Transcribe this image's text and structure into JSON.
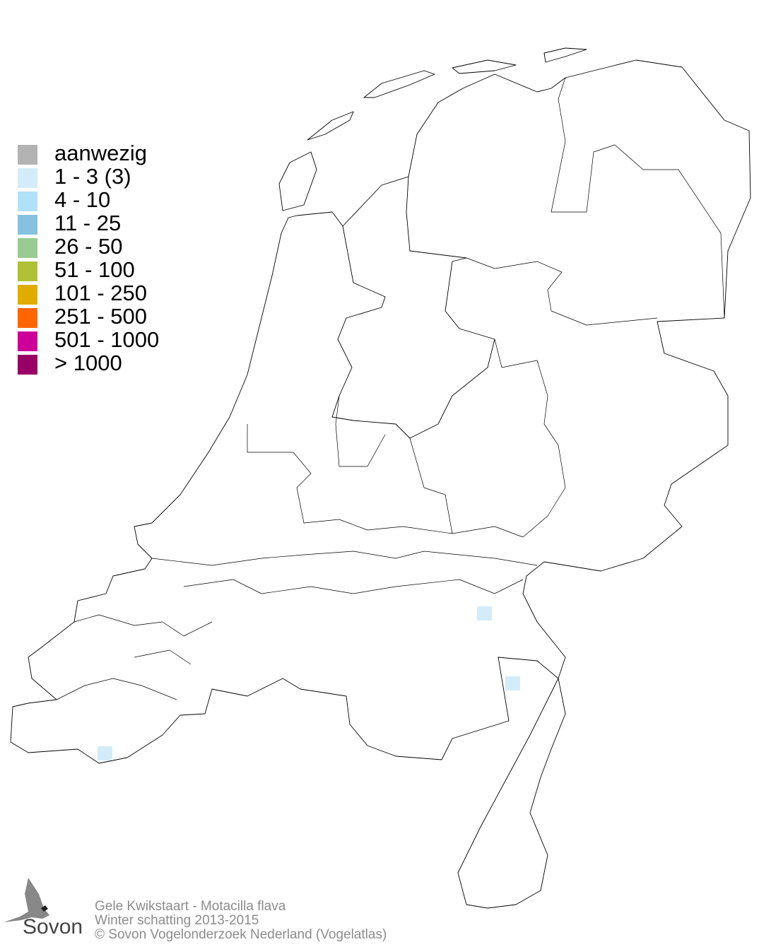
{
  "legend": {
    "items": [
      {
        "label": "aanwezig",
        "color": "#b3b3b3"
      },
      {
        "label": "1 - 3 (3)",
        "color": "#d4ecf9"
      },
      {
        "label": "4 - 10",
        "color": "#b1e1f9"
      },
      {
        "label": "11 - 25",
        "color": "#86c1df"
      },
      {
        "label": "26 - 50",
        "color": "#98cc93"
      },
      {
        "label": "51 - 100",
        "color": "#b1c136"
      },
      {
        "label": "101 - 250",
        "color": "#e0ac00"
      },
      {
        "label": "251 - 500",
        "color": "#ff6600"
      },
      {
        "label": "501 - 1000",
        "color": "#cc0099"
      },
      {
        "label": "> 1000",
        "color": "#990066"
      }
    ]
  },
  "cells": [
    {
      "class": "1 - 3 (3)",
      "area": "Noord-Brabant oost"
    },
    {
      "class": "1 - 3 (3)",
      "area": "Noord-Limburg"
    },
    {
      "class": "1 - 3 (3)",
      "area": "Zeeuws-Vlaanderen"
    }
  ],
  "footer": {
    "species": "Gele Kwikstaart - Motacilla flava",
    "season": "Winter schatting 2013-2015",
    "copyright": "© Sovon Vogelonderzoek Nederland (Vogelatlas)"
  },
  "logo": {
    "text": "Sovon"
  }
}
